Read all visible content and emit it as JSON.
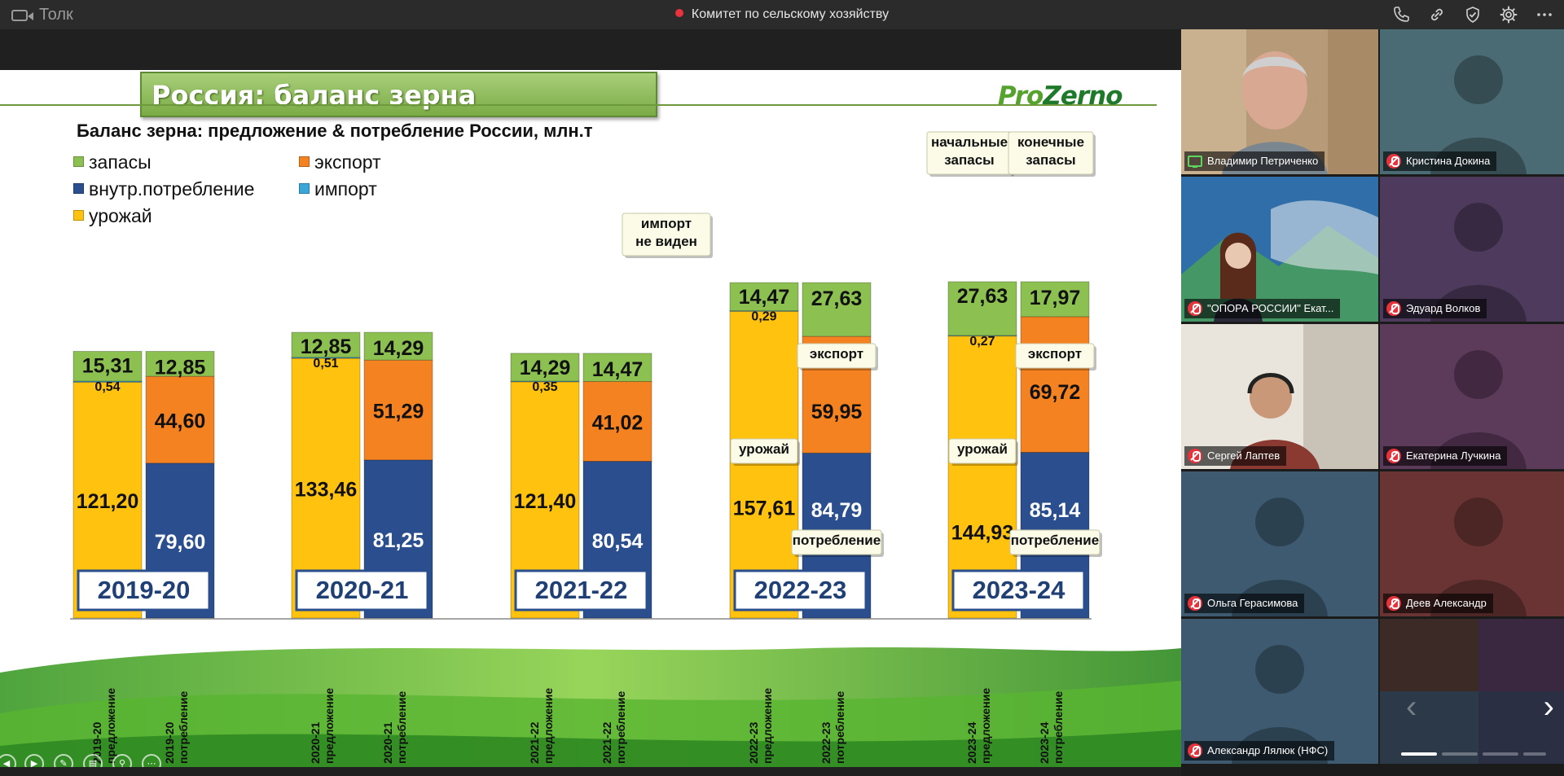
{
  "app": {
    "name": "Толк",
    "meeting_title": "Комитет по сельскому хозяйству"
  },
  "toolbar_icons": [
    "phone-icon",
    "link-icon",
    "shield-icon",
    "gear-icon",
    "more-icon"
  ],
  "slide": {
    "title": "Россия: баланс зерна",
    "logo_pro": "Pro",
    "logo_zerno": "Zerno",
    "subtitle": "Баланс зерна: предложение & потребление России, млн.т",
    "legend": [
      {
        "label": "запасы",
        "color": "#8cc152"
      },
      {
        "label": "экспорт",
        "color": "#f58220"
      },
      {
        "label": "внутр.потребление",
        "color": "#2b4f8e"
      },
      {
        "label": "импорт",
        "color": "#3aa6d8"
      },
      {
        "label": "урожай",
        "color": "#ffc20e"
      }
    ]
  },
  "chart_data": {
    "type": "bar",
    "stacked": true,
    "unit": "млн.т",
    "title": "Баланс зерна: предложение & потребление России, млн.т",
    "colors": {
      "stocks": "#8cc152",
      "export": "#f58220",
      "consumption": "#2b4f8e",
      "import": "#3aa6d8",
      "harvest": "#ffc20e"
    },
    "groups": [
      {
        "season": "2019-20",
        "supply": {
          "harvest": 121.2,
          "import": 0.54,
          "stocks": 15.31,
          "labels": {
            "harvest": "121,20",
            "import": "0,54",
            "stocks": "15,31"
          }
        },
        "use": {
          "consumption": 79.6,
          "export": 44.6,
          "stocks": 12.85,
          "labels": {
            "consumption": "79,60",
            "export": "44,60",
            "stocks": "12,85"
          }
        },
        "x_labels": [
          "2019-20 предложение",
          "2019-20 потребление"
        ]
      },
      {
        "season": "2020-21",
        "supply": {
          "harvest": 133.46,
          "import": 0.51,
          "stocks": 12.85,
          "labels": {
            "harvest": "133,46",
            "import": "0,51",
            "stocks": "12,85"
          }
        },
        "use": {
          "consumption": 81.25,
          "export": 51.29,
          "stocks": 14.29,
          "labels": {
            "consumption": "81,25",
            "export": "51,29",
            "stocks": "14,29"
          }
        },
        "x_labels": [
          "2020-21 предложение",
          "2020-21 потребление"
        ]
      },
      {
        "season": "2021-22",
        "supply": {
          "harvest": 121.4,
          "import": 0.35,
          "stocks": 14.29,
          "labels": {
            "harvest": "121,40",
            "import": "0,35",
            "stocks": "14,29"
          }
        },
        "use": {
          "consumption": 80.54,
          "export": 41.02,
          "stocks": 14.47,
          "labels": {
            "consumption": "80,54",
            "export": "41,02",
            "stocks": "14,47"
          }
        },
        "x_labels": [
          "2021-22 предложение",
          "2021-22 потребление"
        ]
      },
      {
        "season": "2022-23",
        "supply": {
          "harvest": 157.61,
          "import": 0.29,
          "stocks": 14.47,
          "labels": {
            "harvest": "157,61",
            "import": "0,29",
            "stocks": "14,47"
          }
        },
        "use": {
          "consumption": 84.79,
          "export": 59.95,
          "stocks": 27.63,
          "labels": {
            "consumption": "84,79",
            "export": "59,95",
            "stocks": "27,63"
          }
        },
        "x_labels": [
          "2022-23 предложение",
          "2022-23 потребление"
        ]
      },
      {
        "season": "2023-24",
        "supply": {
          "harvest": 144.93,
          "import": 0.27,
          "stocks": 27.63,
          "labels": {
            "harvest": "144,93",
            "import": "0,27",
            "stocks": "27,63"
          }
        },
        "use": {
          "consumption": 85.14,
          "export": 69.72,
          "stocks": 17.97,
          "labels": {
            "consumption": "85,14",
            "export": "69,72",
            "stocks": "17,97"
          }
        },
        "x_labels": [
          "2023-24 предложение",
          "2023-24 потребление"
        ]
      }
    ],
    "callouts": {
      "import_not_visible": [
        "импорт",
        "не виден"
      ],
      "opening_stocks": [
        "начальные",
        "запасы"
      ],
      "closing_stocks": [
        "конечные",
        "запасы"
      ],
      "export": "экспорт",
      "harvest": "урожай",
      "consumption": "потребление"
    }
  },
  "participants": [
    {
      "name": "Владимир Петриченко",
      "muted": false,
      "sharing": true,
      "bg": "#6d5b47",
      "active": true
    },
    {
      "name": "Кристина Докина",
      "muted": true,
      "bg": "#4a6a74"
    },
    {
      "name": "\"ОПОРА РОССИИ\" Екат...",
      "muted": true,
      "bg": "#2f6ea8",
      "banner": "ОПОРА РОССИИ"
    },
    {
      "name": "Эдуард Волков",
      "muted": true,
      "bg": "#4d3a5c"
    },
    {
      "name": "Сергей Лаптев",
      "muted": true,
      "bg": "#7a6a5c"
    },
    {
      "name": "Екатерина Лучкина",
      "muted": true,
      "bg": "#5c3a5a"
    },
    {
      "name": "Ольга Герасимова",
      "muted": true,
      "bg": "#3e5a70"
    },
    {
      "name": "Деев Александр",
      "muted": true,
      "bg": "#6a3434"
    },
    {
      "name": "Александр Лялюк (НФС)",
      "muted": true,
      "bg": "#3e5a70"
    },
    {
      "name": "",
      "muted": false,
      "bg": "#3a2a2a",
      "grid": true
    }
  ]
}
